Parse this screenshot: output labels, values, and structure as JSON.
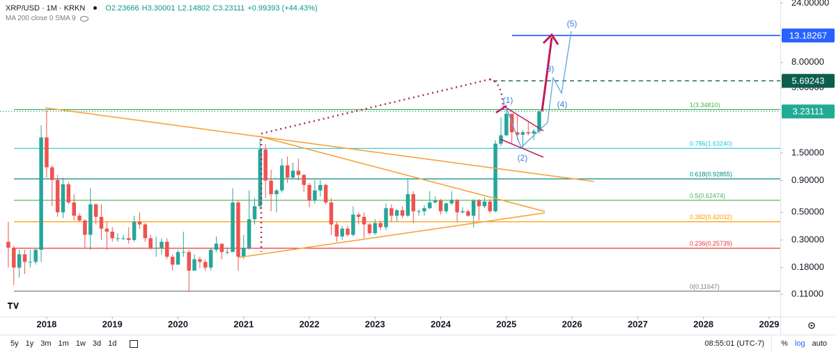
{
  "chart_data": {
    "type": "candlestick",
    "header": {
      "symbol": "XRP/USD · 1M · KRKN",
      "quote": [
        "O2.23666",
        "H3.30001",
        "L2.14802",
        "C3.23111",
        "+0.99393 (+44.43%)"
      ],
      "indicator": "MA 200 close 0 SMA 9"
    },
    "x": [
      2017.417,
      2017.5,
      2017.583,
      2017.667,
      2017.75,
      2017.833,
      2017.917,
      2018,
      2018.083,
      2018.167,
      2018.25,
      2018.333,
      2018.417,
      2018.5,
      2018.583,
      2018.667,
      2018.75,
      2018.833,
      2018.917,
      2019,
      2019.083,
      2019.167,
      2019.25,
      2019.333,
      2019.417,
      2019.5,
      2019.583,
      2019.667,
      2019.75,
      2019.833,
      2019.917,
      2020,
      2020.083,
      2020.167,
      2020.25,
      2020.333,
      2020.417,
      2020.5,
      2020.583,
      2020.667,
      2020.75,
      2020.833,
      2020.917,
      2021,
      2021.083,
      2021.167,
      2021.25,
      2021.333,
      2021.417,
      2021.5,
      2021.583,
      2021.667,
      2021.75,
      2021.833,
      2021.917,
      2022,
      2022.083,
      2022.167,
      2022.25,
      2022.333,
      2022.417,
      2022.5,
      2022.583,
      2022.667,
      2022.75,
      2022.833,
      2022.917,
      2023,
      2023.083,
      2023.167,
      2023.25,
      2023.333,
      2023.417,
      2023.5,
      2023.583,
      2023.667,
      2023.75,
      2023.833,
      2023.917,
      2024,
      2024.083,
      2024.167,
      2024.25,
      2024.333,
      2024.417,
      2024.5,
      2024.583,
      2024.667,
      2024.75,
      2024.833,
      2024.917,
      2025,
      2025.083,
      2025.167,
      2025.25,
      2025.333,
      2025.417,
      2025.5
    ],
    "open": [
      0.29,
      0.26,
      0.18,
      0.23,
      0.2,
      0.2,
      0.25,
      2.0,
      1.15,
      0.91,
      0.5,
      0.84,
      0.6,
      0.47,
      0.43,
      0.33,
      0.58,
      0.46,
      0.37,
      0.35,
      0.31,
      0.31,
      0.31,
      0.3,
      0.42,
      0.4,
      0.31,
      0.26,
      0.26,
      0.29,
      0.22,
      0.19,
      0.24,
      0.24,
      0.17,
      0.21,
      0.2,
      0.18,
      0.25,
      0.28,
      0.24,
      0.24,
      0.6,
      0.22,
      0.26,
      0.44,
      0.56,
      1.6,
      0.9,
      0.7,
      0.75,
      1.19,
      0.95,
      1.08,
      1.0,
      0.83,
      0.62,
      0.75,
      0.83,
      0.6,
      0.4,
      0.32,
      0.37,
      0.33,
      0.48,
      0.46,
      0.4,
      0.34,
      0.41,
      0.38,
      0.54,
      0.47,
      0.52,
      0.47,
      0.7,
      0.51,
      0.51,
      0.54,
      0.6,
      0.62,
      0.51,
      0.59,
      0.63,
      0.5,
      0.51,
      0.47,
      0.62,
      0.56,
      0.61,
      0.51,
      1.78,
      2.08,
      3.1,
      2.2,
      2.1,
      2.2,
      2.15,
      2.23666
    ],
    "high": [
      0.42,
      0.27,
      0.25,
      0.25,
      0.25,
      0.26,
      2.5,
      3.3,
      1.2,
      1.0,
      0.95,
      0.88,
      0.7,
      0.49,
      0.44,
      0.78,
      0.59,
      0.58,
      0.42,
      0.38,
      0.34,
      0.33,
      0.38,
      0.47,
      0.5,
      0.41,
      0.33,
      0.32,
      0.31,
      0.31,
      0.23,
      0.25,
      0.35,
      0.25,
      0.23,
      0.22,
      0.21,
      0.26,
      0.32,
      0.28,
      0.26,
      0.78,
      0.63,
      0.33,
      0.75,
      0.65,
      1.96,
      1.77,
      1.1,
      0.77,
      1.35,
      1.41,
      1.25,
      1.35,
      1.01,
      0.86,
      0.91,
      0.91,
      0.85,
      0.65,
      0.42,
      0.39,
      0.39,
      0.56,
      0.5,
      0.5,
      0.41,
      0.44,
      0.43,
      0.59,
      0.58,
      0.53,
      0.56,
      0.94,
      0.74,
      0.53,
      0.57,
      0.74,
      0.67,
      0.64,
      0.6,
      0.74,
      0.64,
      0.55,
      0.53,
      0.64,
      0.64,
      0.66,
      0.64,
      1.9,
      2.9,
      3.4,
      3.1,
      3.0,
      2.3,
      2.65,
      2.34,
      3.30001
    ],
    "low": [
      0.18,
      0.13,
      0.15,
      0.16,
      0.18,
      0.19,
      0.2,
      0.95,
      0.56,
      0.46,
      0.45,
      0.58,
      0.43,
      0.42,
      0.26,
      0.25,
      0.4,
      0.3,
      0.25,
      0.29,
      0.29,
      0.3,
      0.28,
      0.29,
      0.37,
      0.29,
      0.25,
      0.22,
      0.23,
      0.21,
      0.17,
      0.19,
      0.22,
      0.115,
      0.17,
      0.18,
      0.17,
      0.17,
      0.24,
      0.21,
      0.23,
      0.24,
      0.17,
      0.21,
      0.25,
      0.4,
      0.53,
      0.65,
      0.51,
      0.5,
      0.72,
      0.86,
      0.93,
      0.9,
      0.73,
      0.55,
      0.59,
      0.67,
      0.58,
      0.33,
      0.29,
      0.3,
      0.32,
      0.32,
      0.4,
      0.31,
      0.33,
      0.33,
      0.36,
      0.36,
      0.42,
      0.42,
      0.45,
      0.46,
      0.41,
      0.47,
      0.47,
      0.53,
      0.59,
      0.48,
      0.49,
      0.57,
      0.42,
      0.49,
      0.46,
      0.38,
      0.43,
      0.54,
      0.49,
      0.5,
      1.7,
      2.05,
      1.77,
      1.91,
      1.61,
      2.08,
      1.9,
      2.14802
    ],
    "close": [
      0.26,
      0.18,
      0.23,
      0.2,
      0.2,
      0.25,
      2.0,
      1.15,
      0.91,
      0.5,
      0.84,
      0.6,
      0.47,
      0.43,
      0.33,
      0.58,
      0.46,
      0.37,
      0.35,
      0.31,
      0.31,
      0.31,
      0.3,
      0.42,
      0.4,
      0.31,
      0.26,
      0.26,
      0.29,
      0.22,
      0.19,
      0.24,
      0.24,
      0.17,
      0.21,
      0.2,
      0.18,
      0.25,
      0.28,
      0.24,
      0.24,
      0.6,
      0.22,
      0.26,
      0.44,
      0.56,
      1.6,
      0.9,
      0.7,
      0.75,
      1.19,
      0.95,
      1.08,
      1.0,
      0.83,
      0.62,
      0.75,
      0.83,
      0.6,
      0.4,
      0.32,
      0.37,
      0.33,
      0.48,
      0.46,
      0.4,
      0.34,
      0.41,
      0.38,
      0.54,
      0.47,
      0.52,
      0.47,
      0.7,
      0.51,
      0.51,
      0.54,
      0.6,
      0.62,
      0.51,
      0.59,
      0.63,
      0.5,
      0.51,
      0.47,
      0.62,
      0.56,
      0.61,
      0.51,
      1.78,
      2.08,
      3.1,
      2.2,
      2.1,
      2.2,
      2.15,
      2.24,
      3.23111
    ],
    "up_color": "#26a69a",
    "down_color": "#ef5350",
    "log_scale": true,
    "grid": false,
    "xlim": [
      2017.29,
      2029.17
    ],
    "xticks": [
      2018,
      2019,
      2020,
      2021,
      2022,
      2023,
      2024,
      2025,
      2026,
      2027,
      2028,
      2029
    ],
    "ylim": [
      0.0728,
      25.4
    ],
    "yticks": [
      {
        "value": 24,
        "label": "24.00000"
      },
      {
        "value": 8,
        "label": "8.00000"
      },
      {
        "value": 5,
        "label": "5.00000"
      },
      {
        "value": 1.5,
        "label": "1.50000"
      },
      {
        "value": 0.9,
        "label": "0.90000"
      },
      {
        "value": 0.5,
        "label": "0.50000"
      },
      {
        "value": 0.3,
        "label": "0.30000"
      },
      {
        "value": 0.18,
        "label": "0.18000"
      },
      {
        "value": 0.11,
        "label": "0.11000"
      }
    ],
    "fib_levels": [
      {
        "label": "1(3.34810)",
        "price": 3.3481,
        "color": "#4caf50"
      },
      {
        "label": "0.786(1.63240)",
        "price": 1.6324,
        "color": "#26c6da"
      },
      {
        "label": "0.618(0.92855)",
        "price": 0.92855,
        "color": "#00897b"
      },
      {
        "label": "0.5(0.62474)",
        "price": 0.62474,
        "color": "#4caf50"
      },
      {
        "label": "0.382(0.42032)",
        "price": 0.42032,
        "color": "#ff9800"
      },
      {
        "label": "0.236(0.25739)",
        "price": 0.25739,
        "color": "#e53935"
      },
      {
        "label": "0(0.11647)",
        "price": 0.11647,
        "color": "#787b86"
      }
    ],
    "price_lines": [
      {
        "value": 13.18267,
        "color": "#2962ff",
        "style": "solid"
      },
      {
        "value": 5.69243,
        "color": "#0b5e4f",
        "style": "dashed"
      },
      {
        "value": 3.23111,
        "color": "#22ab94",
        "style": "dotted"
      }
    ],
    "waves": [
      "(1)",
      "(2)",
      "3)",
      "(4)",
      "(5)"
    ],
    "toolbar": {
      "ranges": [
        "5y",
        "1y",
        "3m",
        "1m",
        "1w",
        "3d",
        "1d"
      ],
      "time": "08:55:01 (UTC-7)",
      "scale": [
        "%",
        "log",
        "auto"
      ],
      "active_scale": "log"
    }
  }
}
